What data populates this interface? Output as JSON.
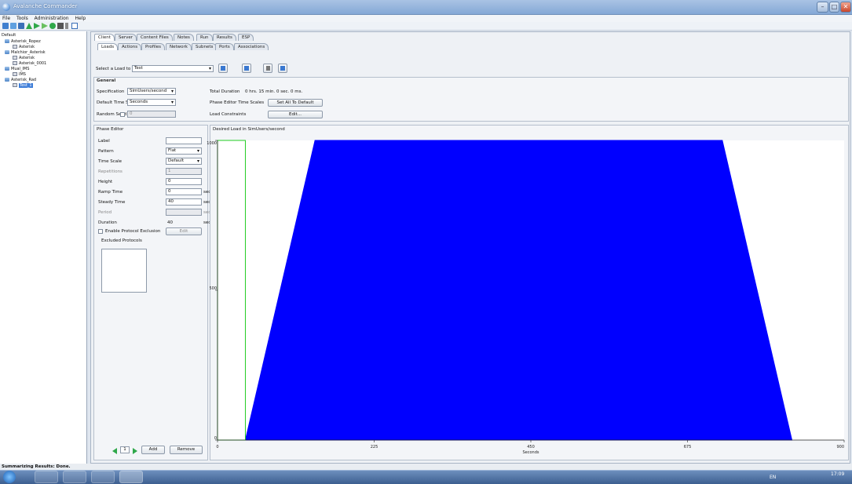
{
  "window": {
    "title": "Avalanche Commander"
  },
  "menu": [
    "File",
    "Tools",
    "Administration",
    "Help"
  ],
  "tree": {
    "items": [
      {
        "label": "Default",
        "level": 0,
        "icon": "none"
      },
      {
        "label": "Asterisk_Ropez",
        "level": 1,
        "icon": "folder"
      },
      {
        "label": "Asterisk",
        "level": 2,
        "icon": "doc"
      },
      {
        "label": "Malchior_Asterisk",
        "level": 1,
        "icon": "folder"
      },
      {
        "label": "Asterisk",
        "level": 2,
        "icon": "doc"
      },
      {
        "label": "Asterisk_0001",
        "level": 2,
        "icon": "doc"
      },
      {
        "label": "Mual_IMS",
        "level": 1,
        "icon": "folder"
      },
      {
        "label": "IMS",
        "level": 2,
        "icon": "doc"
      },
      {
        "label": "Asterisk_Rad",
        "level": 1,
        "icon": "folder"
      },
      {
        "label": "Test_1",
        "level": 2,
        "icon": "doc",
        "selected": true
      }
    ]
  },
  "top_tabs": [
    "Client",
    "Server",
    "Content Files",
    "Notes",
    "Run",
    "Results",
    "ESP"
  ],
  "sub_tabs": [
    "Loads",
    "Actions",
    "Profiles",
    "Network",
    "Subnets",
    "Ports",
    "Associations"
  ],
  "load_select": {
    "label": "Select a Load to Edit:",
    "value": "Test"
  },
  "general": {
    "title": "General",
    "specification_label": "Specification",
    "specification_value": "SimUsers/second",
    "time_scale_label": "Default Time Scale",
    "time_scale_value": "Seconds",
    "random_seed_label": "Random Seed",
    "random_seed_value": "0",
    "total_duration_label": "Total Duration",
    "total_duration_value": "0 hrs. 15 min. 0 sec. 0 ms.",
    "phase_time_scale_label": "Phase Editor Time Scales",
    "set_all_default_label": "Set All To Default",
    "load_constraints_label": "Load Constraints",
    "edit_label": "Edit..."
  },
  "phase_editor": {
    "title": "Phase Editor",
    "label_label": "Label",
    "label_value": "",
    "pattern_label": "Pattern",
    "pattern_value": "Flat",
    "time_scale_label": "Time Scale",
    "time_scale_value": "Default",
    "repetitions_label": "Repetitions",
    "repetitions_value": "1",
    "height_label": "Height",
    "height_value": "0",
    "ramp_label": "Ramp Time",
    "ramp_value": "0",
    "steady_label": "Steady Time",
    "steady_value": "40",
    "period_label": "Period",
    "period_value": "",
    "duration_label": "Duration",
    "duration_value": "40",
    "sec_unit": "sec.",
    "enable_exclusion_label": "Enable Protocol Exclusion",
    "exclusion_edit_label": "Edit",
    "excluded_label": "Excluded Protocols",
    "phase_number": "1",
    "add_label": "Add",
    "remove_label": "Remove"
  },
  "chart_data": {
    "type": "area",
    "title": "Desired Load in SimUsers/second",
    "xlabel": "Seconds",
    "ylabel": "",
    "xlim": [
      0,
      900
    ],
    "ylim": [
      0,
      1000
    ],
    "x_ticks": [
      0,
      225,
      450,
      675,
      900
    ],
    "y_ticks": [
      0,
      500,
      1000
    ],
    "series": [
      {
        "x": [
          40,
          140,
          725,
          825
        ],
        "y": [
          0,
          1000,
          1000,
          0
        ]
      }
    ],
    "highlight_phase": {
      "x": [
        0,
        40
      ],
      "y": [
        0,
        1000
      ]
    },
    "fill_color": "#0000ff",
    "highlight_color": "#22cc22",
    "grid": false
  },
  "status": {
    "text": "Summarizing Results: Done."
  },
  "tray": {
    "lang": "EN",
    "time": "17:09"
  }
}
